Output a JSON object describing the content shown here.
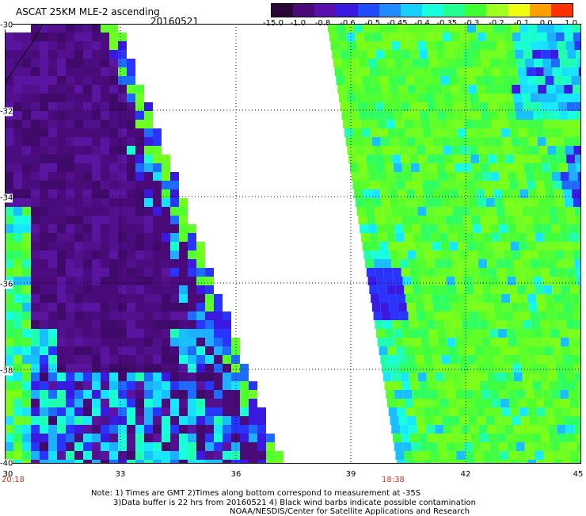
{
  "header": {
    "title": "ASCAT 25KM MLE-2 ascending",
    "date": "20160521"
  },
  "colorbar": {
    "labels": [
      "-15.0",
      "-1.0",
      "-0.8",
      "-0.6",
      "-0.5",
      "-0.45",
      "-0.4",
      "-0.35",
      "-0.3",
      "-0.2",
      "-0.1",
      "0.0",
      "1.0"
    ],
    "colors": [
      "#2a0636",
      "#4a0a78",
      "#5a0fb0",
      "#3a1ae0",
      "#1f4cff",
      "#1e8cff",
      "#18d0ff",
      "#18ffe0",
      "#20ff90",
      "#40ff30",
      "#a0ff20",
      "#f0ff10",
      "#ffa000",
      "#ff3000"
    ]
  },
  "axes": {
    "y_ticks": [
      "-30",
      "-32",
      "-34",
      "-36",
      "-38",
      "-40"
    ],
    "x_ticks": [
      "30",
      "33",
      "36",
      "39",
      "42",
      "45"
    ]
  },
  "passes": [
    {
      "time": "20:18"
    },
    {
      "time": "18:38"
    }
  ],
  "footer": {
    "note1": "Note: 1) Times are GMT 2)Times along bottom correspond to measurement at -35S",
    "note2": "3)Data buffer is 22 hrs from 20160521 4) Black wind barbs indicate possible contamination",
    "note3": "NOAA/NESDIS/Center for Satellite Applications and Research"
  }
}
